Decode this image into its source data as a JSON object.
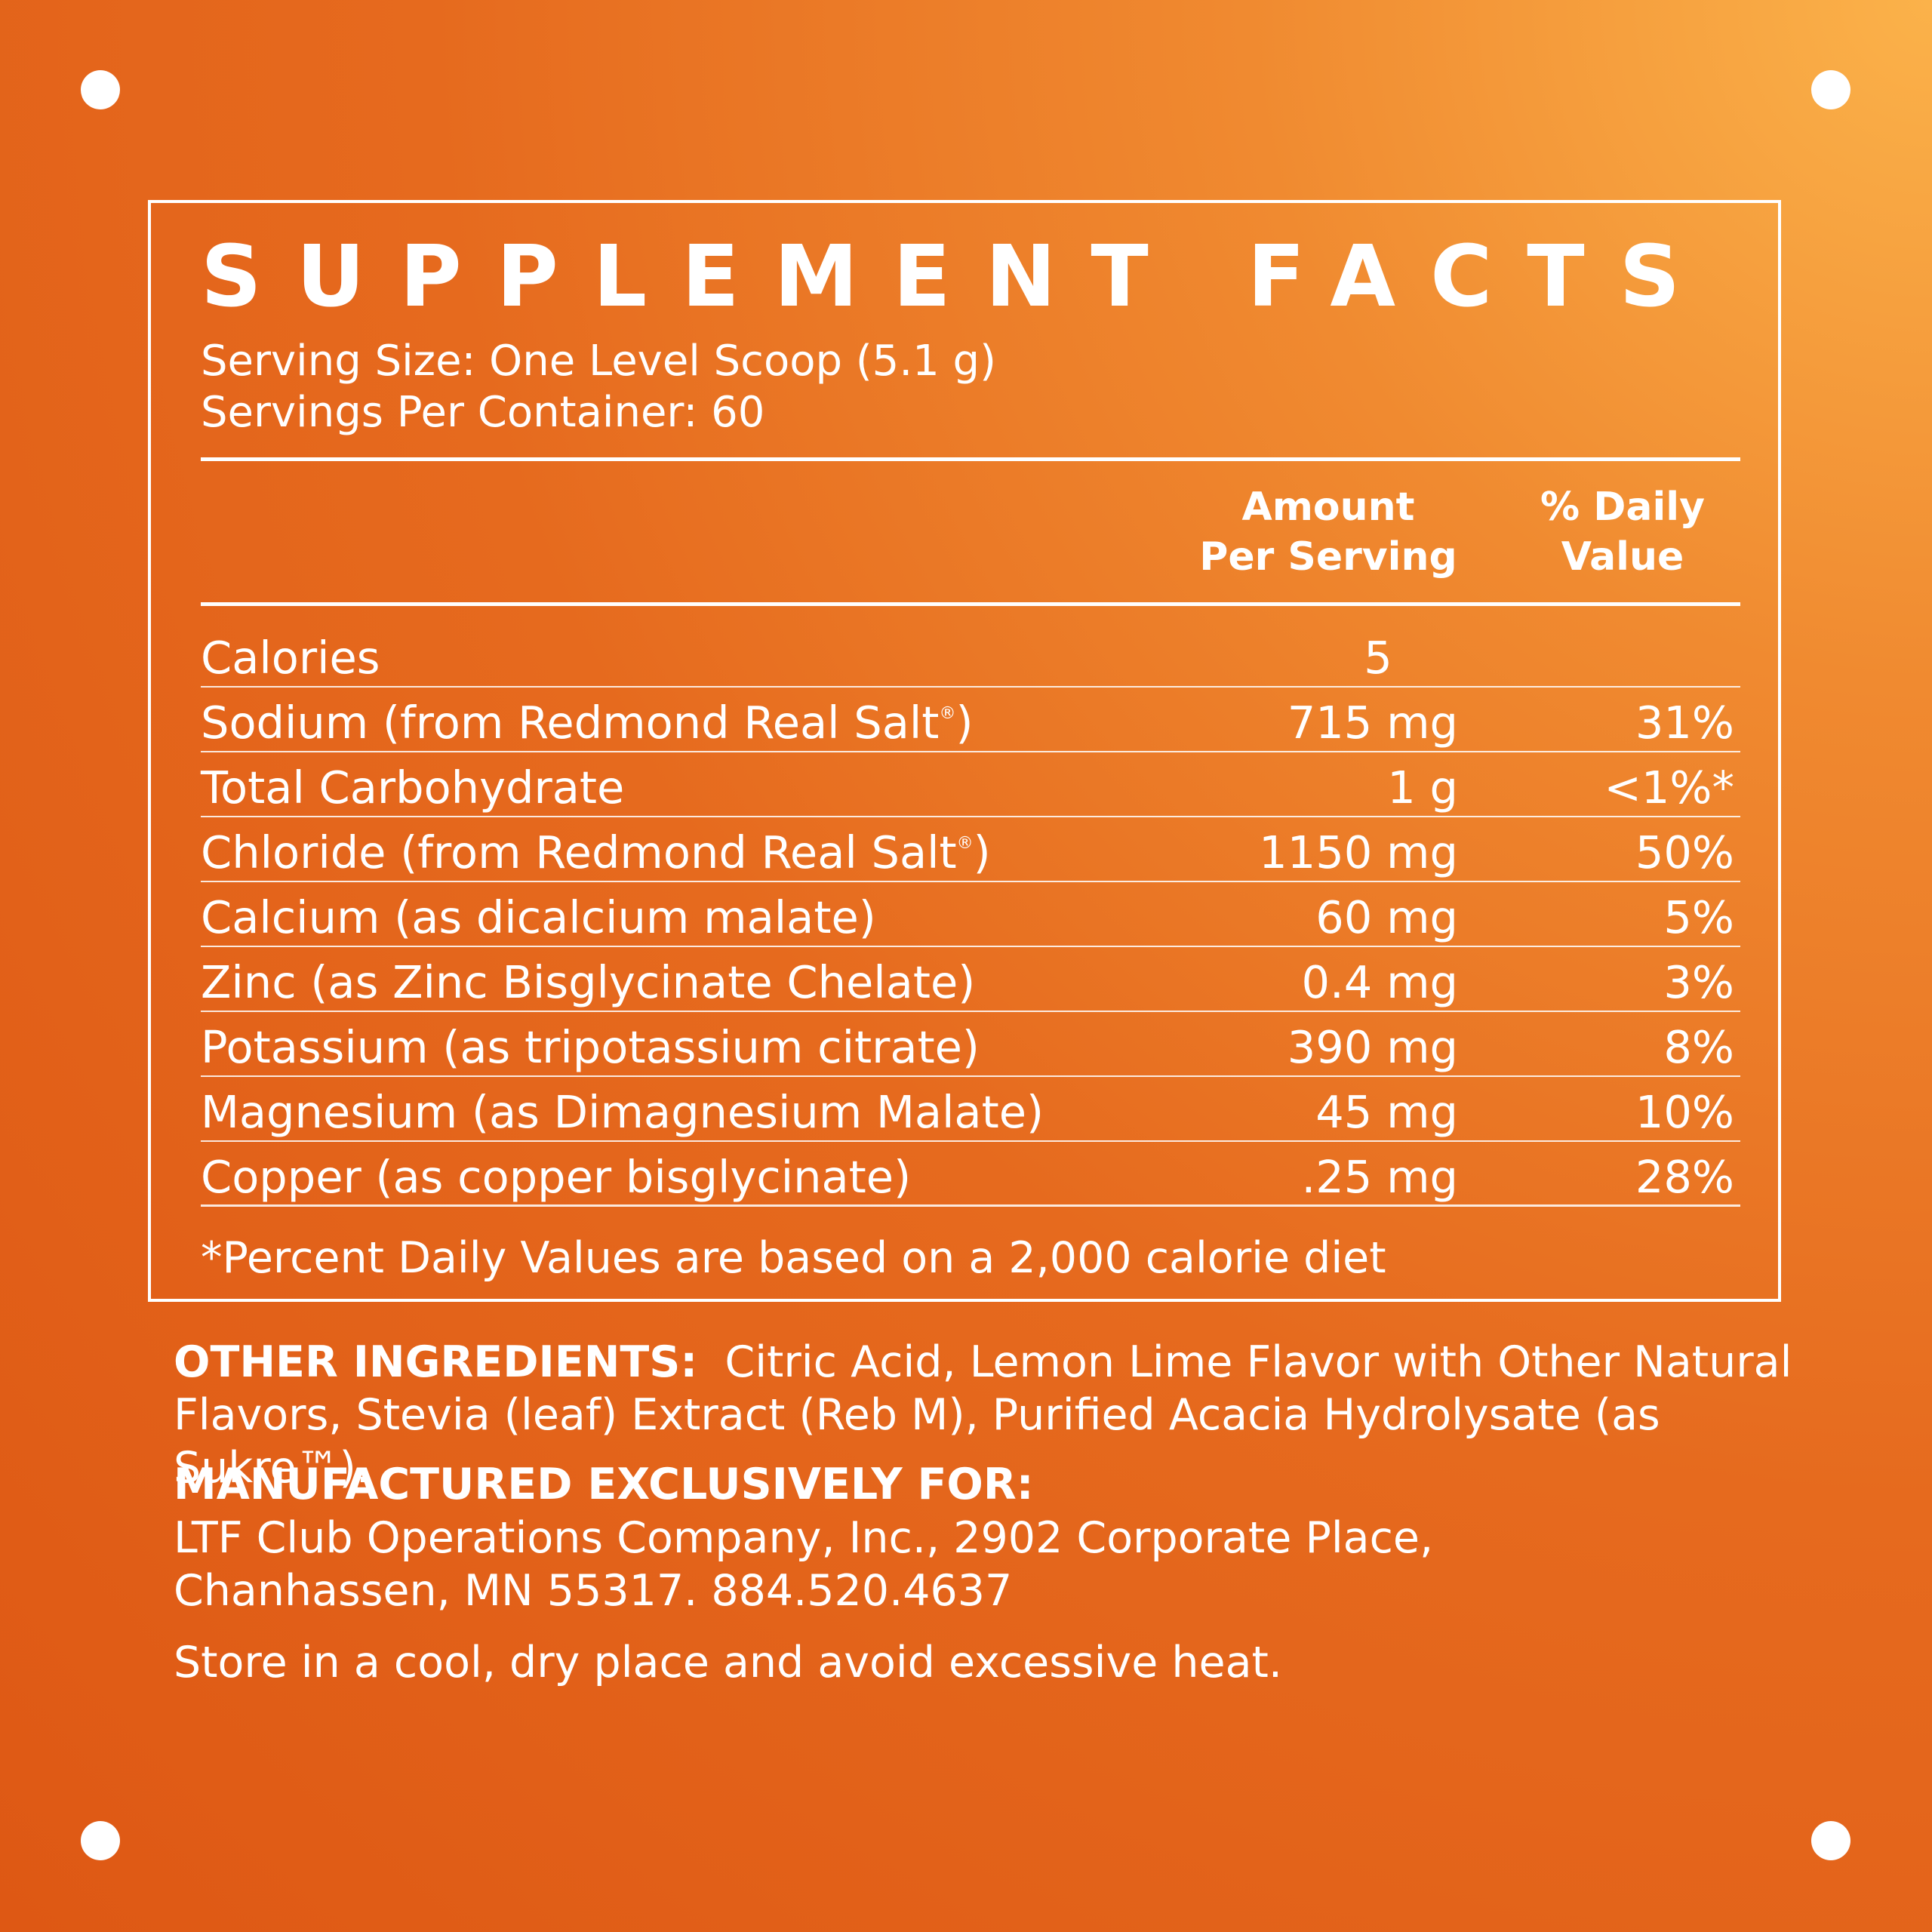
{
  "title": "SUPPLEMENT FACTS",
  "serving_size": "Serving Size: One Level Scoop (5.1 g)",
  "servings_per_container": "Servings Per Container: 60",
  "headers": {
    "amount_line1": "Amount",
    "amount_line2": "Per Serving",
    "dv_line1": "% Daily",
    "dv_line2": "Value"
  },
  "rows": [
    {
      "name": "Calories",
      "amount": "5",
      "dv": ""
    },
    {
      "name": "Sodium (from Redmond Real Salt",
      "mark": "®",
      "name_end": ")",
      "amount": "715 mg",
      "dv": "31%"
    },
    {
      "name": "Total Carbohydrate",
      "amount": "1 g",
      "dv": "<1%*"
    },
    {
      "name": "Chloride (from Redmond Real Salt",
      "mark": "®",
      "name_end": ")",
      "amount": "1150 mg",
      "dv": "50%"
    },
    {
      "name": "Calcium (as dicalcium malate)",
      "amount": "60 mg",
      "dv": "5%"
    },
    {
      "name": "Zinc (as Zinc Bisglycinate Chelate)",
      "amount": "0.4 mg",
      "dv": "3%"
    },
    {
      "name": "Potassium (as tripotassium citrate)",
      "amount": "390 mg",
      "dv": "8%"
    },
    {
      "name": "Magnesium (as Dimagnesium Malate)",
      "amount": "45 mg",
      "dv": "10%"
    },
    {
      "name": "Copper (as copper bisglycinate)",
      "amount": ".25 mg",
      "dv": "28%"
    }
  ],
  "footnote": "*Percent Daily Values are based on a 2,000 calorie diet",
  "other_ingredients": {
    "label": "OTHER INGREDIENTS:",
    "text": "Citric Acid, Lemon Lime Flavor with Other Natural Flavors, Stevia (leaf) Extract (Reb M), Purified Acacia Hydrolysate (as Sukre™)."
  },
  "manufacturer": {
    "label": "MANUFACTURED EXCLUSIVELY FOR:",
    "line1": "LTF Club Operations Company, Inc., 2902 Corporate Place,",
    "line2": "Chanhassen, MN 55317. 884.520.4637"
  },
  "storage": "Store in a cool, dry place and avoid excessive heat."
}
